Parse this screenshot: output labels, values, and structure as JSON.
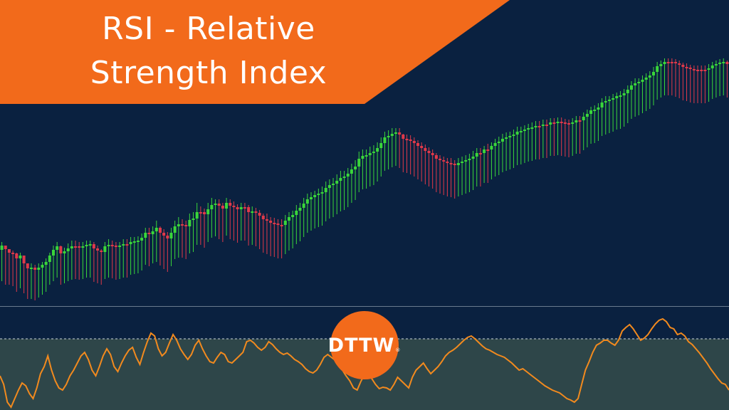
{
  "title": {
    "line1": "RSI - Relative",
    "line2": "Strength Index"
  },
  "logo": {
    "text": "DTTW",
    "mark": "®"
  },
  "colors": {
    "background": "#0a2140",
    "banner": "#f26a1b",
    "bull": "#3ad63a",
    "bear": "#e0394a",
    "rsi_line": "#f28a1e",
    "rsi_panel": "#2e4649",
    "divider": "#c9d2dc"
  },
  "chart_data": [
    {
      "type": "candlestick",
      "title": "",
      "series": [
        {
          "close": [
            345,
            350,
            355,
            356,
            363,
            359,
            370,
            377,
            376,
            379,
            376,
            372,
            368,
            359,
            351,
            346,
            356,
            353,
            349,
            346,
            346,
            347,
            346,
            344,
            343,
            349,
            352,
            354,
            346,
            344,
            345,
            347,
            345,
            343,
            343,
            340,
            339,
            338,
            334,
            327,
            329,
            325,
            320,
            327,
            331,
            335,
            327,
            318,
            315,
            316,
            318,
            309,
            307,
            298,
            298,
            301,
            294,
            288,
            286,
            289,
            293,
            285,
            289,
            291,
            294,
            291,
            291,
            298,
            297,
            299,
            303,
            308,
            310,
            313,
            314,
            316,
            316,
            310,
            305,
            302,
            296,
            292,
            286,
            280,
            277,
            274,
            272,
            270,
            264,
            260,
            258,
            254,
            250,
            248,
            244,
            238,
            234,
            223,
            219,
            218,
            215,
            213,
            208,
            201,
            193,
            191,
            188,
            186,
            189,
            195,
            196,
            198,
            201,
            205,
            208,
            212,
            215,
            218,
            223,
            225,
            227,
            229,
            230,
            232,
            229,
            227,
            225,
            223,
            220,
            215,
            215,
            210,
            210,
            205,
            201,
            199,
            195,
            193,
            191,
            189,
            185,
            184,
            182,
            180,
            179,
            177,
            177,
            175,
            175,
            172,
            172,
            171,
            172,
            173,
            174,
            172,
            169,
            169,
            164,
            160,
            155,
            154,
            151,
            144,
            142,
            140,
            138,
            135,
            134,
            131,
            126,
            120,
            117,
            115,
            112,
            109,
            106,
            101,
            93,
            90,
            87,
            87,
            87,
            89,
            91,
            94,
            95,
            97,
            98,
            98,
            98,
            98,
            96,
            92,
            90,
            88,
            87,
            90
          ],
          "wick_high": [
            340,
            345,
            350,
            352,
            355,
            355,
            360,
            370,
            370,
            372,
            370,
            368,
            363,
            355,
            345,
            340,
            345,
            348,
            342,
            338,
            338,
            340,
            340,
            338,
            338,
            340,
            345,
            350,
            340,
            336,
            338,
            340,
            340,
            336,
            336,
            333,
            333,
            332,
            328,
            320,
            320,
            318,
            310,
            318,
            322,
            326,
            320,
            310,
            305,
            308,
            310,
            300,
            298,
            285,
            290,
            293,
            285,
            278,
            280,
            280,
            285,
            278,
            280,
            283,
            287,
            285,
            285,
            288,
            290,
            292,
            295,
            300,
            300,
            305,
            306,
            308,
            308,
            302,
            298,
            296,
            288,
            285,
            278,
            272,
            270,
            268,
            265,
            262,
            255,
            252,
            250,
            245,
            240,
            240,
            236,
            230,
            225,
            213,
            210,
            210,
            206,
            204,
            200,
            193,
            185,
            183,
            180,
            180,
            180,
            188,
            189,
            190,
            193,
            197,
            200,
            203,
            207,
            210,
            215,
            218,
            220,
            222,
            222,
            225,
            222,
            220,
            218,
            216,
            212,
            208,
            208,
            205,
            202,
            200,
            195,
            192,
            188,
            186,
            185,
            182,
            178,
            178,
            176,
            174,
            172,
            170,
            170,
            168,
            168,
            166,
            166,
            165,
            165,
            167,
            168,
            166,
            163,
            163,
            158,
            154,
            150,
            148,
            145,
            138,
            135,
            135,
            132,
            130,
            128,
            125,
            120,
            114,
            110,
            110,
            106,
            103,
            100,
            94,
            87,
            85,
            82,
            82,
            82,
            83,
            85,
            88,
            89,
            91,
            92,
            92,
            92,
            92,
            90,
            87,
            85,
            83,
            82,
            85
          ],
          "wick_low": [
            395,
            400,
            400,
            402,
            410,
            405,
            412,
            420,
            420,
            422,
            418,
            414,
            410,
            400,
            395,
            390,
            400,
            398,
            395,
            393,
            392,
            393,
            392,
            390,
            390,
            396,
            398,
            400,
            392,
            390,
            391,
            393,
            392,
            390,
            390,
            386,
            385,
            384,
            380,
            372,
            374,
            370,
            368,
            373,
            378,
            382,
            374,
            364,
            362,
            362,
            364,
            356,
            354,
            344,
            344,
            348,
            340,
            334,
            332,
            336,
            340,
            331,
            336,
            338,
            341,
            338,
            338,
            345,
            344,
            346,
            350,
            355,
            357,
            360,
            361,
            363,
            363,
            357,
            352,
            349,
            343,
            339,
            333,
            327,
            324,
            321,
            319,
            317,
            311,
            307,
            305,
            301,
            297,
            295,
            291,
            285,
            281,
            270,
            266,
            265,
            262,
            260,
            255,
            248,
            240,
            238,
            235,
            233,
            236,
            242,
            243,
            245,
            248,
            252,
            255,
            259,
            262,
            265,
            270,
            272,
            274,
            276,
            277,
            279,
            276,
            274,
            272,
            270,
            267,
            262,
            262,
            257,
            257,
            252,
            248,
            246,
            242,
            240,
            238,
            236,
            232,
            231,
            229,
            227,
            226,
            224,
            224,
            222,
            222,
            219,
            219,
            218,
            219,
            220,
            221,
            219,
            216,
            216,
            211,
            207,
            202,
            201,
            198,
            191,
            189,
            187,
            185,
            182,
            181,
            178,
            173,
            167,
            164,
            162,
            159,
            156,
            153,
            148,
            140,
            137,
            134,
            134,
            134,
            136,
            138,
            141,
            142,
            144,
            145,
            145,
            145,
            145,
            143,
            139,
            137,
            135,
            134,
            137
          ]
        }
      ],
      "cols": [
        1,
        0.97
      ],
      "ylim": [
        0,
        430
      ]
    },
    {
      "type": "line",
      "title": "",
      "series": [
        {
          "values": [
            528,
            540,
            565,
            572,
            560,
            548,
            538,
            542,
            553,
            560,
            545,
            525,
            515,
            500,
            520,
            535,
            545,
            548,
            540,
            528,
            520,
            510,
            500,
            495,
            505,
            520,
            528,
            515,
            500,
            490,
            498,
            515,
            522,
            510,
            500,
            492,
            488,
            502,
            512,
            495,
            480,
            468,
            472,
            490,
            500,
            495,
            482,
            470,
            478,
            490,
            498,
            505,
            498,
            485,
            478,
            490,
            500,
            508,
            510,
            502,
            495,
            498,
            508,
            510,
            505,
            500,
            495,
            480,
            478,
            482,
            488,
            492,
            488,
            480,
            484,
            490,
            495,
            498,
            496,
            500,
            505,
            508,
            512,
            518,
            522,
            524,
            520,
            512,
            502,
            498,
            502,
            506,
            512,
            520,
            528,
            535,
            545,
            548,
            536,
            526,
            520,
            532,
            540,
            546,
            544,
            545,
            548,
            540,
            530,
            535,
            540,
            545,
            530,
            520,
            515,
            510,
            518,
            525,
            520,
            515,
            508,
            500,
            495,
            492,
            488,
            483,
            478,
            474,
            472,
            476,
            481,
            486,
            490,
            492,
            495,
            498,
            500,
            502,
            506,
            510,
            515,
            520,
            518,
            522,
            526,
            530,
            534,
            538,
            542,
            545,
            548,
            550,
            552,
            556,
            560,
            562,
            565,
            560,
            540,
            520,
            508,
            495,
            485,
            482,
            478,
            478,
            482,
            485,
            478,
            465,
            460,
            456,
            462,
            470,
            478,
            475,
            470,
            462,
            455,
            450,
            448,
            452,
            460,
            462,
            470,
            468,
            472,
            480,
            484,
            490,
            496,
            503,
            510,
            518,
            525,
            532,
            538,
            540,
            548
          ],
          "name": ""
        }
      ],
      "reference_lines": [
        476
      ],
      "ylim": [
        0,
        100
      ]
    }
  ]
}
